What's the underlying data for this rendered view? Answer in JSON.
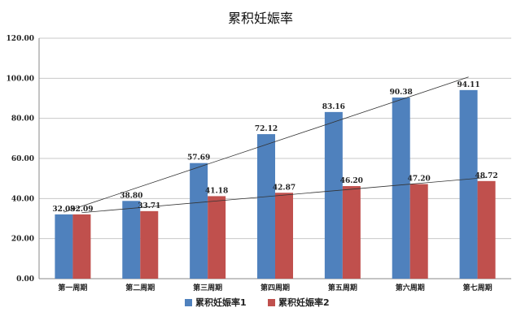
{
  "chart_data": {
    "type": "bar",
    "title": "累积妊娠率",
    "categories": [
      "第一周期",
      "第二周期",
      "第三周期",
      "第四周期",
      "第五周期",
      "第六周期",
      "第七周期"
    ],
    "series": [
      {
        "name": "累积妊娠率1",
        "values": [
          32.09,
          38.8,
          57.69,
          72.12,
          83.16,
          90.38,
          94.11
        ],
        "labels": [
          "32.09",
          "38.80",
          "57.69",
          "72.12",
          "83.16",
          "90.38",
          "94.11"
        ],
        "color": "#4f81bd"
      },
      {
        "name": "累积妊娠率2",
        "values": [
          32.09,
          33.71,
          41.18,
          42.87,
          46.2,
          47.2,
          48.72
        ],
        "labels": [
          "32.09",
          "33.71",
          "41.18",
          "42.87",
          "46.20",
          "47.20",
          "48.72"
        ],
        "color": "#c0504d"
      }
    ],
    "ylim": [
      0,
      120
    ],
    "yticks": [
      "0.00",
      "20.00",
      "40.00",
      "60.00",
      "80.00",
      "100.00",
      "120.00"
    ],
    "grid": true,
    "trendlines": true,
    "legend_position": "bottom"
  }
}
